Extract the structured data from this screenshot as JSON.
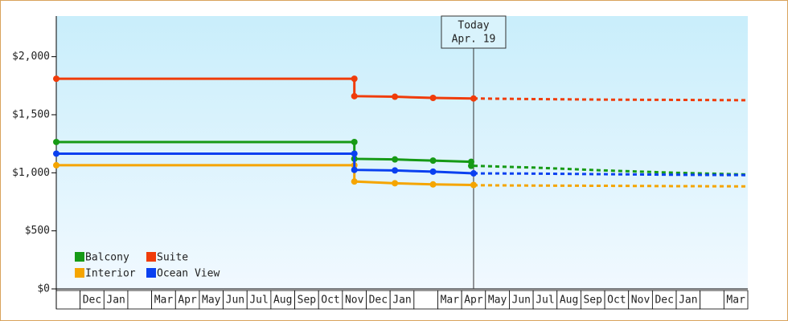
{
  "chart_data": {
    "type": "line",
    "categories": [
      null,
      "Dec",
      "Jan",
      null,
      "Mar",
      "Apr",
      "May",
      "Jun",
      "Jul",
      "Aug",
      "Sep",
      "Oct",
      "Nov",
      "Dec",
      "Jan",
      null,
      "Mar",
      "Apr",
      "May",
      "Jun",
      "Jul",
      "Aug",
      "Sep",
      "Oct",
      "Nov",
      "Dec",
      "Jan",
      null,
      "Mar"
    ],
    "xlim": [
      0,
      29
    ],
    "ylim": [
      0,
      2350
    ],
    "yticks": [
      {
        "value": 0,
        "label": "$0"
      },
      {
        "value": 500,
        "label": "$500"
      },
      {
        "value": 1000,
        "label": "$1,000"
      },
      {
        "value": 1500,
        "label": "$1,500"
      },
      {
        "value": 2000,
        "label": "$2,000"
      }
    ],
    "grid": false,
    "legend": "lower left",
    "today": {
      "x": 17.5,
      "label": [
        "Today",
        "Apr. 19"
      ]
    },
    "series": [
      {
        "name": "Balcony",
        "color": "#169a16",
        "x": [
          0,
          12.5,
          12.5,
          14.2,
          15.8,
          17.4,
          17.4
        ],
        "values": [
          1265,
          1265,
          1120,
          1115,
          1105,
          1095,
          1060
        ],
        "forecast": {
          "x": [
            17.5,
            20,
            23,
            26,
            29
          ],
          "values": [
            1060,
            1045,
            1020,
            1000,
            985
          ]
        }
      },
      {
        "name": "Suite",
        "color": "#f03c0a",
        "x": [
          0,
          12.5,
          12.5,
          14.2,
          15.8,
          17.5
        ],
        "values": [
          1810,
          1810,
          1660,
          1655,
          1645,
          1640
        ],
        "forecast": {
          "x": [
            17.5,
            20,
            23,
            26,
            29
          ],
          "values": [
            1640,
            1635,
            1630,
            1628,
            1625
          ]
        }
      },
      {
        "name": "Interior",
        "color": "#f5a500",
        "x": [
          0,
          12.5,
          12.5,
          14.2,
          15.8,
          17.5
        ],
        "values": [
          1065,
          1065,
          925,
          910,
          900,
          895
        ],
        "forecast": {
          "x": [
            17.5,
            20,
            23,
            26,
            29
          ],
          "values": [
            893,
            890,
            888,
            885,
            883
          ]
        }
      },
      {
        "name": "Ocean View",
        "color": "#0a40f0",
        "x": [
          0,
          12.5,
          12.5,
          14.2,
          15.8,
          17.5
        ],
        "values": [
          1165,
          1165,
          1025,
          1020,
          1010,
          995
        ],
        "forecast": {
          "x": [
            17.5,
            20,
            23,
            26,
            29
          ],
          "values": [
            995,
            993,
            988,
            983,
            980
          ]
        }
      }
    ]
  }
}
